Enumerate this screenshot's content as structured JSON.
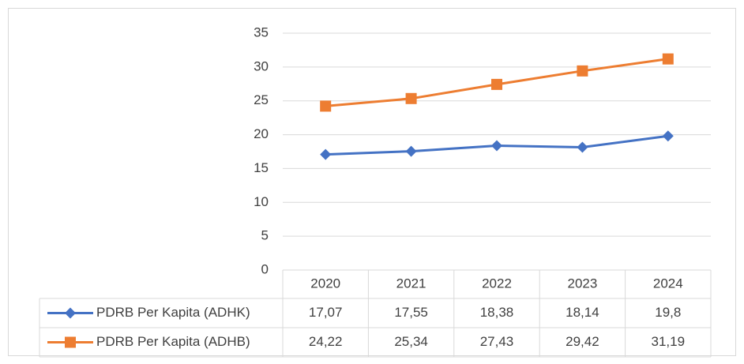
{
  "chart_data": {
    "type": "line",
    "categories": [
      "2020",
      "2021",
      "2022",
      "2023",
      "2024"
    ],
    "series": [
      {
        "name": "PDRB Per Kapita (ADHK)",
        "color": "#4472c4",
        "marker": "diamond",
        "values": [
          17.07,
          17.55,
          18.38,
          18.14,
          19.8
        ],
        "value_labels": [
          "17,07",
          "17,55",
          "18,38",
          "18,14",
          "19,8"
        ]
      },
      {
        "name": "PDRB Per Kapita (ADHB)",
        "color": "#ed7d31",
        "marker": "square",
        "values": [
          24.22,
          25.34,
          27.43,
          29.42,
          31.19
        ],
        "value_labels": [
          "24,22",
          "25,34",
          "27,43",
          "29,42",
          "31,19"
        ]
      }
    ],
    "ylim": [
      0,
      35
    ],
    "yticks": [
      0,
      5,
      10,
      15,
      20,
      25,
      30,
      35
    ],
    "grid": true
  }
}
